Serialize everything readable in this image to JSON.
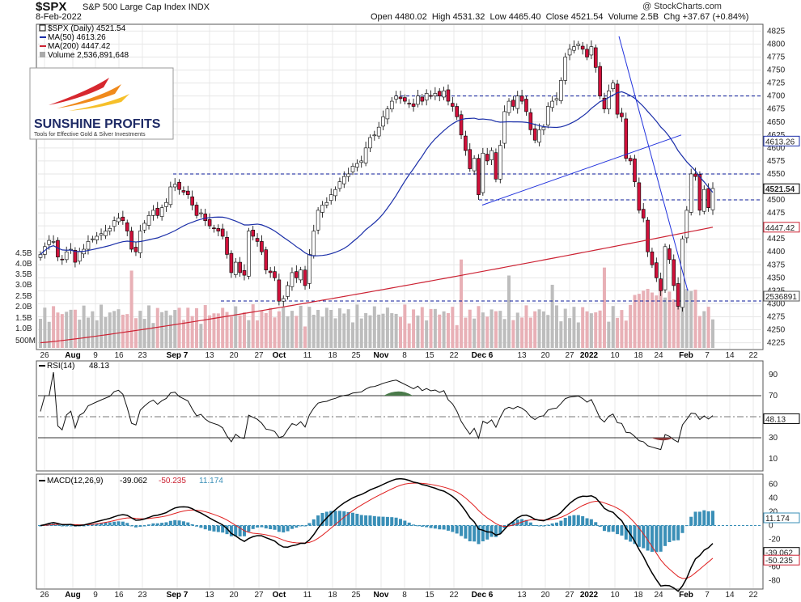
{
  "header": {
    "ticker": "$SPX",
    "description": "S&P 500 Large Cap Index",
    "exchange": "INDX",
    "date": "8-Feb-2022",
    "open_label": "Open",
    "open": "4480.02",
    "high_label": "High",
    "high": "4531.32",
    "low_label": "Low",
    "low": "4465.40",
    "close_label": "Close",
    "close": "4521.54",
    "volume_label": "Volume",
    "volume": "2.5B",
    "chg_label": "Chg",
    "chg": "+37.67 (+0.84%)",
    "copyright": "@ StockCharts.com"
  },
  "logo": {
    "name": "SUNSHINE PROFITS",
    "tagline": "Tools for Effective Gold & Silver Investments"
  },
  "legend": {
    "price": "$SPX (Daily) 4521.54",
    "ma50": "MA(50) 4613.26",
    "ma200": "MA(200) 4447.42",
    "volume": "Volume 2,536,891,648"
  },
  "colors": {
    "up": "#ffffff",
    "down": "#d0103a",
    "ma50": "#1a2ea8",
    "ma200": "#cc2233",
    "guide": "#0a1a9a",
    "trend": "#2233dd",
    "vol_up": "#bdbdbd",
    "vol_down": "#e8b0b6",
    "rsi_over": "#4a7a4a",
    "rsi_under": "#8a3a3a",
    "hist": "#3a8fb7"
  },
  "axes": {
    "x_labels": [
      "26",
      "Aug",
      "9",
      "16",
      "23",
      "Sep 7",
      "13",
      "20",
      "27",
      "Oct",
      "11",
      "18",
      "25",
      "Nov",
      "8",
      "15",
      "22",
      "Dec 6",
      "13",
      "20",
      "27",
      "2022",
      "10",
      "18",
      "24",
      "Feb",
      "7",
      "14",
      "22"
    ],
    "price_ticks": [
      "4825",
      "4800",
      "4775",
      "4750",
      "4725",
      "4700",
      "4675",
      "4650",
      "4625",
      "4600",
      "4575",
      "4550",
      "4525",
      "4500",
      "4475",
      "4450",
      "4425",
      "4400",
      "4375",
      "4350",
      "4325",
      "4300",
      "4275",
      "4250",
      "4225"
    ],
    "volume_ticks": [
      "4.5B",
      "4.0B",
      "3.5B",
      "3.0B",
      "2.5B",
      "2.0B",
      "1.5B",
      "1.0B",
      "500M"
    ],
    "rsi_ticks": [
      "90",
      "70",
      "50",
      "30",
      "10"
    ],
    "macd_ticks": [
      "60",
      "40",
      "20",
      "0",
      "-20",
      "-40",
      "-60",
      "-80"
    ]
  },
  "tags": {
    "ma50": "4613.26",
    "close": "4521.54",
    "ma200": "4447.42",
    "volume": "2536891",
    "rsi": "48.13",
    "hist": "11.174",
    "macd": "-39.062",
    "signal": "-50.235"
  },
  "rsi": {
    "label": "RSI(14)",
    "value": "48.13"
  },
  "macd": {
    "label": "MACD(12,26,9)",
    "macd": "-39.062",
    "signal": "-50.235",
    "hist": "11.174"
  },
  "chart_data": {
    "type": "candlestick",
    "title": "$SPX S&P 500 Large Cap Index INDX",
    "guides": [
      4700,
      4550,
      4500
    ],
    "closes": [
      4395,
      4410,
      4422,
      4420,
      4390,
      4385,
      4400,
      4405,
      4380,
      4400,
      4405,
      4420,
      4425,
      4430,
      4435,
      4440,
      4445,
      4460,
      4465,
      4460,
      4440,
      4405,
      4400,
      4440,
      4455,
      4470,
      4480,
      4470,
      4485,
      4495,
      4525,
      4530,
      4520,
      4515,
      4510,
      4490,
      4470,
      4475,
      4460,
      4450,
      4445,
      4440,
      4430,
      4395,
      4360,
      4380,
      4360,
      4355,
      4440,
      4430,
      4420,
      4400,
      4365,
      4360,
      4350,
      4305,
      4310,
      4335,
      4360,
      4350,
      4365,
      4335,
      4395,
      4440,
      4480,
      4490,
      4495,
      4510,
      4520,
      4535,
      4545,
      4550,
      4565,
      4570,
      4575,
      4600,
      4620,
      4625,
      4640,
      4660,
      4675,
      4690,
      4700,
      4695,
      4690,
      4685,
      4680,
      4700,
      4690,
      4705,
      4700,
      4705,
      4700,
      4710,
      4690,
      4680,
      4660,
      4625,
      4595,
      4560,
      4580,
      4510,
      4590,
      4575,
      4595,
      4540,
      4605,
      4670,
      4690,
      4680,
      4700,
      4690,
      4670,
      4635,
      4615,
      4635,
      4640,
      4680,
      4690,
      4695,
      4730,
      4775,
      4790,
      4795,
      4800,
      4790,
      4775,
      4795,
      4755,
      4700,
      4675,
      4710,
      4725,
      4665,
      4660,
      4580,
      4575,
      4535,
      4480,
      4465,
      4400,
      4375,
      4350,
      4325,
      4410,
      4385,
      4335,
      4295,
      4425,
      4480,
      4550,
      4545,
      4480,
      4520,
      4485,
      4522
    ],
    "ma50_last": 4613.26,
    "ma200_last": 4447.42,
    "volume_last": "2,536,891,648",
    "rsi_last": 48.13,
    "macd_last": -39.062,
    "signal_last": -50.235,
    "hist_last": 11.174,
    "xlabel": "",
    "ylabel": "",
    "ylim": [
      4215,
      4835
    ]
  }
}
